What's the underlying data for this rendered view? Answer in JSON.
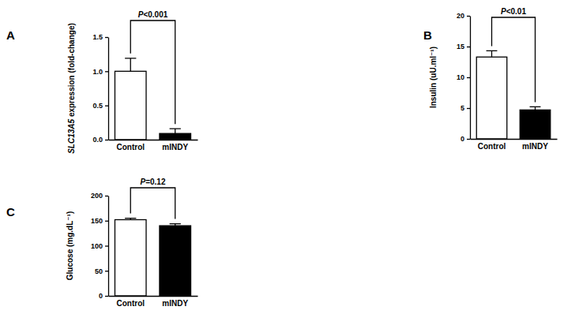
{
  "chart_data": [
    {
      "type": "bar",
      "title": "A",
      "y_label": "SLC13A5 expression (fold-change)",
      "categories": [
        "Control",
        "mINDY"
      ],
      "values": [
        1.0,
        0.09
      ],
      "errors": [
        0.19,
        0.07
      ],
      "colors": [
        "#ffffff",
        "#000000"
      ],
      "ylim": [
        0,
        1.5
      ],
      "yticks": [
        {
          "value": 0,
          "label": "0.0"
        },
        0.5,
        {
          "value": 1,
          "label": "1.0"
        },
        1.5
      ],
      "annotations": [
        "P<0.001"
      ]
    },
    {
      "type": "bar",
      "title": "B",
      "y_label": "Insulin (uU.ml⁻¹)",
      "categories": [
        "Control",
        "mINDY"
      ],
      "values": [
        13.3,
        4.7
      ],
      "errors": [
        1.0,
        0.5
      ],
      "colors": [
        "#ffffff",
        "#000000"
      ],
      "ylim": [
        0,
        20
      ],
      "yticks": [
        0,
        5,
        10,
        15,
        20
      ],
      "annotations": [
        "P<0.01"
      ]
    },
    {
      "type": "bar",
      "title": "C",
      "y_label": "Glucose (mg.dL⁻¹)",
      "categories": [
        "Control",
        "mINDY"
      ],
      "values": [
        152,
        140
      ],
      "errors": [
        3,
        4
      ],
      "colors": [
        "#ffffff",
        "#000000"
      ],
      "ylim": [
        0,
        200
      ],
      "yticks": [
        0,
        50,
        100,
        150,
        200
      ],
      "annotations": [
        "P=0.12"
      ]
    }
  ]
}
